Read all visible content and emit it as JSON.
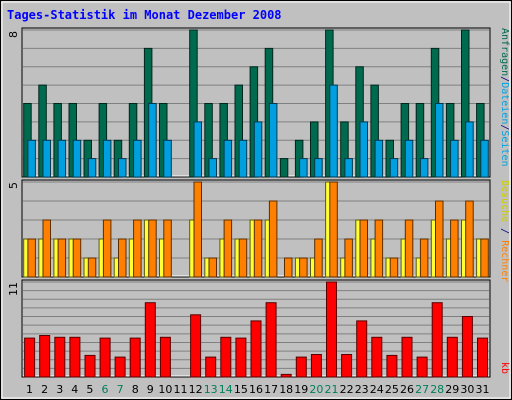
{
  "chart_data": {
    "type": "bar",
    "title": "Tages-Statistik im Monat Dezember 2008",
    "days": [
      "1",
      "2",
      "3",
      "4",
      "5",
      "6",
      "7",
      "8",
      "9",
      "10",
      "11",
      "12",
      "13",
      "14",
      "15",
      "16",
      "17",
      "18",
      "19",
      "20",
      "21",
      "22",
      "23",
      "24",
      "25",
      "26",
      "27",
      "28",
      "29",
      "30",
      "31"
    ],
    "weekend_days": [
      "6",
      "7",
      "13",
      "14",
      "20",
      "21",
      "27",
      "28"
    ],
    "panels": [
      {
        "id": "top",
        "ymax_label": "8",
        "ymax": 8,
        "series": [
          {
            "name": "Anfragen",
            "color": "#006a4f",
            "values": [
              4,
              5,
              4,
              4,
              2,
              4,
              2,
              4,
              7,
              4,
              0,
              8,
              4,
              4,
              5,
              6,
              7,
              1,
              2,
              3,
              8,
              3,
              6,
              5,
              2,
              4,
              4,
              7,
              4,
              8,
              4
            ]
          },
          {
            "name": "Dateien",
            "color": "#00a0e0",
            "values": [
              2,
              2,
              2,
              2,
              1,
              2,
              1,
              2,
              4,
              2,
              0,
              3,
              1,
              2,
              2,
              3,
              4,
              0,
              1,
              1,
              5,
              1,
              3,
              2,
              1,
              2,
              1,
              4,
              2,
              3,
              2
            ]
          }
        ]
      },
      {
        "id": "middle",
        "ymax_label": "5",
        "ymax": 5,
        "series": [
          {
            "name": "Seiten",
            "color": "#ffff33",
            "values": [
              2,
              2,
              2,
              2,
              1,
              2,
              1,
              2,
              3,
              2,
              0,
              3,
              1,
              2,
              2,
              3,
              3,
              0,
              1,
              1,
              5,
              1,
              3,
              2,
              1,
              2,
              1,
              3,
              2,
              3,
              2
            ]
          },
          {
            "name": "Besuche",
            "color": "#ff8000",
            "values": [
              2,
              3,
              2,
              2,
              1,
              3,
              2,
              3,
              3,
              3,
              0,
              5,
              1,
              3,
              2,
              3,
              4,
              1,
              1,
              2,
              5,
              2,
              3,
              3,
              1,
              3,
              2,
              4,
              3,
              4,
              2
            ]
          }
        ]
      },
      {
        "id": "bottom",
        "ymax_label": "11",
        "ymax": 11,
        "series": [
          {
            "name": "kb",
            "color": "#ff0000",
            "values": [
              4.5,
              4.8,
              4.6,
              4.6,
              2.5,
              4.5,
              2.3,
              4.5,
              8.6,
              4.6,
              0,
              7.2,
              2.3,
              4.6,
              4.5,
              6.5,
              8.6,
              0.3,
              2.3,
              2.6,
              11,
              2.6,
              6.5,
              4.6,
              2.5,
              4.6,
              2.3,
              8.6,
              4.6,
              7,
              4.5
            ]
          }
        ]
      }
    ],
    "side_labels": {
      "top": [
        {
          "text": "Anfragen",
          "color": "#006a4f"
        },
        {
          "text": "/",
          "color": "#000080"
        },
        {
          "text": "Dateien",
          "color": "#00a0e0"
        },
        {
          "text": "/",
          "color": "#000080"
        },
        {
          "text": "Seiten",
          "color": "#00a0e0"
        }
      ],
      "middle": [
        {
          "text": "Besuche",
          "color": "#cccc00"
        },
        {
          "text": " / ",
          "color": "#000080"
        },
        {
          "text": "Rechner",
          "color": "#ff8000"
        }
      ],
      "bottom": [
        {
          "text": "kb",
          "color": "#ff0000"
        }
      ]
    },
    "colors": {
      "title": "#0000ff",
      "background": "#c0c0c0",
      "plot_bg": "#c0c0c0",
      "grid": "#808080",
      "day_label": "#000000",
      "weekend_label": "#00805a"
    },
    "grid": true
  }
}
